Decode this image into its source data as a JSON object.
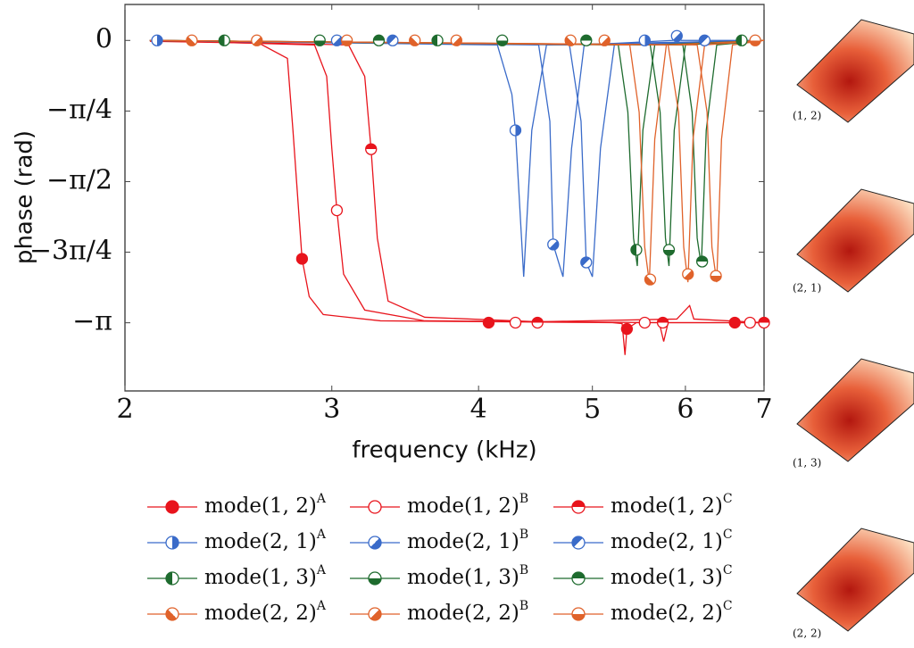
{
  "chart_data": {
    "type": "line",
    "x_label": "frequency (kHz)",
    "y_label": "phase (rad)",
    "xscale": "log",
    "xlim": [
      2,
      7
    ],
    "xticks": [
      2,
      3,
      4,
      5,
      6,
      7
    ],
    "ylim": [
      -3.9,
      0.4
    ],
    "yticks": [
      0,
      {
        "value": -0.7854,
        "label": "−π/4"
      },
      {
        "value": -1.5708,
        "label": "−π/2"
      },
      {
        "value": -2.3562,
        "label": "−3π/4"
      },
      {
        "value": -3.1416,
        "label": "−π"
      }
    ],
    "grid": false,
    "series": [
      {
        "name": "mode(1, 2)",
        "sup": "A",
        "color": "#e8141c",
        "marker": "full",
        "x": [
          2.1,
          2.6,
          2.75,
          2.78,
          2.83,
          2.87,
          2.95,
          3.3,
          5.2,
          5.3,
          5.33,
          5.35,
          5.45,
          7
        ],
        "values": [
          -0.01,
          -0.03,
          -0.2,
          -1.0,
          -2.43,
          -2.85,
          -3.05,
          -3.12,
          -3.14,
          -3.15,
          -3.5,
          -3.21,
          -3.14,
          -3.14
        ],
        "marker_x": [
          2.83,
          4.08,
          5.35,
          6.61
        ],
        "marker_values": [
          -2.43,
          -3.14,
          -3.21,
          -3.14
        ]
      },
      {
        "name": "mode(1, 2)",
        "sup": "B",
        "color": "#e8141c",
        "marker": "open",
        "x": [
          2.1,
          2.9,
          2.97,
          3.0,
          3.03,
          3.07,
          3.2,
          3.6,
          5.7,
          5.75,
          5.8,
          7
        ],
        "values": [
          0,
          -0.05,
          -0.4,
          -1.2,
          -1.89,
          -2.6,
          -3.0,
          -3.12,
          -3.14,
          -3.35,
          -3.14,
          -3.14
        ],
        "marker_x": [
          3.03,
          4.3,
          5.54,
          6.81
        ],
        "marker_values": [
          -1.89,
          -3.14,
          -3.14,
          -3.14
        ]
      },
      {
        "name": "mode(1, 2)",
        "sup": "C",
        "color": "#e8141c",
        "marker": "half-top",
        "x": [
          2.1,
          3.1,
          3.2,
          3.24,
          3.28,
          3.35,
          3.6,
          4.5,
          5.9,
          6.05,
          6.1,
          7
        ],
        "values": [
          0,
          -0.05,
          -0.4,
          -1.21,
          -2.2,
          -2.9,
          -3.08,
          -3.13,
          -3.1,
          -2.95,
          -3.1,
          -3.14
        ],
        "marker_x": [
          3.24,
          4.49,
          5.74,
          7
        ],
        "marker_values": [
          -1.21,
          -3.14,
          -3.14,
          -3.14
        ]
      },
      {
        "name": "mode(2, 1)",
        "sup": "A",
        "color": "#3a6bc9",
        "marker": "half-right",
        "x": [
          2.1,
          4.15,
          4.27,
          4.3,
          4.37,
          4.44,
          4.57,
          7
        ],
        "values": [
          0,
          -0.05,
          -0.6,
          -1.0,
          -2.63,
          -1.0,
          -0.05,
          0
        ],
        "marker_x": [
          2.13,
          4.3,
          5.54
        ],
        "marker_values": [
          0,
          -1.0,
          0
        ]
      },
      {
        "name": "mode(2, 1)",
        "sup": "B",
        "color": "#3a6bc9",
        "marker": "half-bottom-right",
        "x": [
          2.1,
          4.5,
          4.6,
          4.63,
          4.72,
          4.8,
          4.92,
          5.85,
          5.9,
          5.95,
          7
        ],
        "values": [
          0,
          -0.05,
          -0.9,
          -2.27,
          -2.63,
          -1.2,
          -0.05,
          0,
          0.05,
          0,
          0
        ],
        "marker_x": [
          3.03,
          4.63,
          5.9
        ],
        "marker_values": [
          0,
          -2.27,
          0.05
        ]
      },
      {
        "name": "mode(2, 1)",
        "sup": "C",
        "color": "#3a6bc9",
        "marker": "half-top-left",
        "x": [
          2.1,
          4.78,
          4.89,
          4.94,
          5.0,
          5.08,
          5.22,
          7
        ],
        "values": [
          0,
          -0.05,
          -0.9,
          -2.47,
          -2.63,
          -1.2,
          -0.05,
          0
        ],
        "marker_x": [
          3.38,
          4.94,
          6.23
        ],
        "marker_values": [
          0,
          -2.47,
          0
        ]
      },
      {
        "name": "mode(1, 3)",
        "sup": "A",
        "color": "#1e6b2e",
        "marker": "half-left",
        "x": [
          2.1,
          5.26,
          5.36,
          5.42,
          5.46,
          5.52,
          5.65,
          7
        ],
        "values": [
          0,
          -0.05,
          -0.8,
          -2.2,
          -2.51,
          -1.0,
          -0.05,
          0
        ],
        "marker_x": [
          2.43,
          3.69,
          6.7,
          5.45
        ],
        "marker_values": [
          0,
          0,
          0,
          -2.33
        ]
      },
      {
        "name": "mode(1, 3)",
        "sup": "B",
        "color": "#1e6b2e",
        "marker": "half-bottom",
        "x": [
          2.1,
          5.6,
          5.71,
          5.77,
          5.81,
          5.87,
          6.0,
          7
        ],
        "values": [
          0,
          -0.05,
          -0.8,
          -2.2,
          -2.51,
          -1.0,
          -0.05,
          0
        ],
        "marker_x": [
          2.93,
          4.19,
          5.81
        ],
        "marker_values": [
          0,
          0,
          -2.33
        ]
      },
      {
        "name": "mode(1, 3)",
        "sup": "C",
        "color": "#1e6b2e",
        "marker": "half-top",
        "x": [
          2.1,
          5.97,
          6.08,
          6.14,
          6.19,
          6.25,
          6.38,
          7
        ],
        "values": [
          0,
          -0.05,
          -0.8,
          -2.2,
          -2.51,
          -1.0,
          -0.05,
          0
        ],
        "marker_x": [
          3.29,
          4.94,
          6.2
        ],
        "marker_values": [
          0,
          0,
          -2.46
        ]
      },
      {
        "name": "mode(2, 2)",
        "sup": "A",
        "color": "#e0622a",
        "marker": "half-bottom-left",
        "x": [
          2.1,
          5.38,
          5.48,
          5.54,
          5.59,
          5.65,
          5.78,
          7
        ],
        "values": [
          0,
          -0.05,
          -0.8,
          -2.3,
          -2.69,
          -1.1,
          -0.05,
          0
        ],
        "marker_x": [
          2.28,
          3.53,
          4.79,
          5.6
        ],
        "marker_values": [
          0,
          0,
          0,
          -2.66
        ]
      },
      {
        "name": "mode(2, 2)",
        "sup": "B",
        "color": "#e0622a",
        "marker": "half-bottom-right",
        "x": [
          2.1,
          5.8,
          5.92,
          5.98,
          6.03,
          6.09,
          6.23,
          7
        ],
        "values": [
          0,
          -0.05,
          -0.8,
          -2.3,
          -2.69,
          -1.1,
          -0.05,
          0
        ],
        "marker_x": [
          2.59,
          3.83,
          5.12,
          6.03
        ],
        "marker_values": [
          0,
          0,
          0,
          -2.6
        ]
      },
      {
        "name": "mode(2, 2)",
        "sup": "C",
        "color": "#e0622a",
        "marker": "half-bottom",
        "x": [
          2.1,
          6.14,
          6.26,
          6.32,
          6.38,
          6.44,
          6.58,
          7
        ],
        "values": [
          0,
          -0.05,
          -0.8,
          -2.3,
          -2.69,
          -1.1,
          -0.05,
          0
        ],
        "marker_x": [
          3.09,
          6.37,
          6.88
        ],
        "marker_values": [
          0,
          -2.62,
          0
        ]
      }
    ]
  },
  "mode_images": [
    "(1, 2)",
    "(2, 1)",
    "(1, 3)",
    "(2, 2)"
  ]
}
